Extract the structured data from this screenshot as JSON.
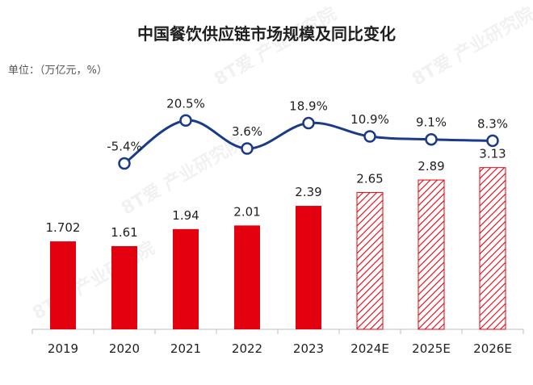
{
  "chart_data": {
    "type": "bar+line",
    "title": "中国餐饮供应链市场规模及同比变化",
    "unit_label": "单位：（万亿元，%）",
    "categories": [
      "2019",
      "2020",
      "2021",
      "2022",
      "2023",
      "2024E",
      "2025E",
      "2026E"
    ],
    "series": [
      {
        "name": "市场规模",
        "kind": "bar",
        "values": [
          1.702,
          1.61,
          1.94,
          2.01,
          2.39,
          2.65,
          2.89,
          3.13
        ],
        "value_labels": [
          "1.702",
          "1.61",
          "1.94",
          "2.01",
          "2.39",
          "2.65",
          "2.89",
          "3.13"
        ],
        "forecast": [
          false,
          false,
          false,
          false,
          false,
          true,
          true,
          true
        ]
      },
      {
        "name": "同比变化",
        "kind": "line",
        "x": [
          "2020",
          "2021",
          "2022",
          "2023",
          "2024E",
          "2025E",
          "2026E"
        ],
        "values": [
          -5.4,
          20.5,
          3.6,
          18.9,
          10.9,
          9.1,
          8.3
        ],
        "value_labels": [
          "-5.4%",
          "20.5%",
          "3.6%",
          "18.9%",
          "10.9%",
          "9.1%",
          "8.3%"
        ]
      }
    ],
    "bar_ylim": [
      0,
      3.5
    ],
    "line_ylim": [
      -10,
      25
    ],
    "legend": "none",
    "grid": false,
    "watermark": "8T爱 产业研究院"
  },
  "colors": {
    "bar": "#e3000f",
    "line": "#1a3a8a",
    "axis": "#bfbfbf",
    "text": "#1f1f1f"
  }
}
